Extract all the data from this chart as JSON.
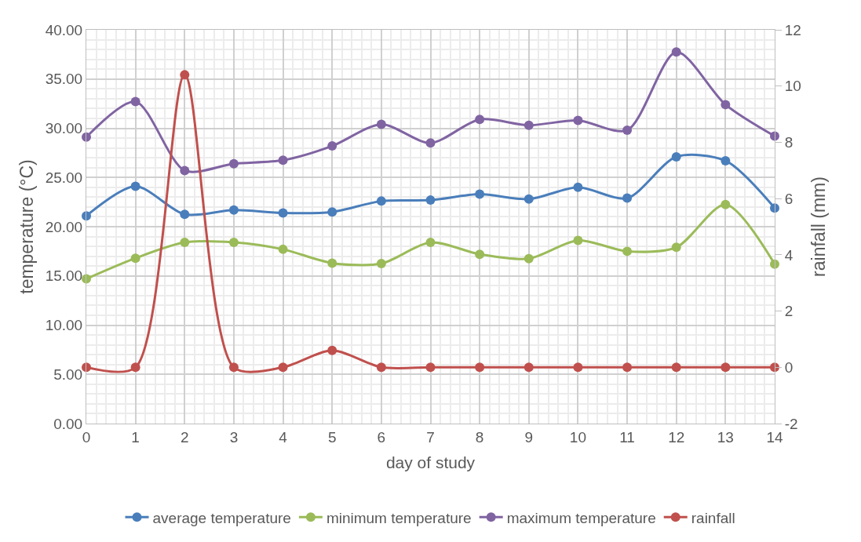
{
  "chart_data": {
    "type": "line",
    "xlabel": "day of study",
    "ylabel": "temperature (°C)",
    "y2label": "rainfall (mm)",
    "x": [
      0,
      1,
      2,
      3,
      4,
      5,
      6,
      7,
      8,
      9,
      10,
      11,
      12,
      13,
      14
    ],
    "xlim": [
      0,
      14
    ],
    "xticks": [
      0,
      1,
      2,
      3,
      4,
      5,
      6,
      7,
      8,
      9,
      10,
      11,
      12,
      13,
      14
    ],
    "ylim": [
      0,
      40
    ],
    "yticks": [
      {
        "value": 0,
        "label": "0.00"
      },
      {
        "value": 5,
        "label": "5.00"
      },
      {
        "value": 10,
        "label": "10.00"
      },
      {
        "value": 15,
        "label": "15.00"
      },
      {
        "value": 20,
        "label": "20.00"
      },
      {
        "value": 25,
        "label": "25.00"
      },
      {
        "value": 30,
        "label": "30.00"
      },
      {
        "value": 35,
        "label": "35.00"
      },
      {
        "value": 40,
        "label": "40.00"
      }
    ],
    "y2lim": [
      -2,
      12
    ],
    "y2ticks": [
      -2,
      0,
      2,
      4,
      6,
      8,
      10,
      12
    ],
    "series": [
      {
        "name": "average temperature",
        "color": "#4a7ebb",
        "values": [
          21.1,
          24.1,
          21.25,
          21.7,
          21.4,
          21.5,
          22.6,
          22.7,
          23.3,
          22.8,
          24.0,
          22.9,
          27.1,
          26.7,
          21.9
        ]
      },
      {
        "name": "minimum temperature",
        "color": "#9bbb59",
        "values": [
          14.7,
          16.8,
          18.4,
          18.4,
          17.7,
          16.3,
          16.25,
          18.4,
          17.2,
          16.75,
          18.6,
          17.5,
          17.9,
          22.25,
          16.2
        ]
      },
      {
        "name": "maximum temperature",
        "color": "#8064a2",
        "values": [
          29.1,
          32.7,
          25.7,
          26.4,
          26.75,
          28.2,
          30.4,
          28.5,
          30.9,
          30.3,
          30.8,
          29.8,
          37.75,
          32.4,
          29.2
        ]
      },
      {
        "name": "rainfall",
        "color": "#c0504d",
        "axis": "y2",
        "values": [
          0,
          0,
          10.4,
          0,
          0,
          0.6,
          0,
          0,
          0,
          0,
          0,
          0,
          0,
          0,
          0
        ]
      }
    ],
    "grid": true,
    "legend": "bottom",
    "marker": "circle",
    "line_style": "solid"
  }
}
